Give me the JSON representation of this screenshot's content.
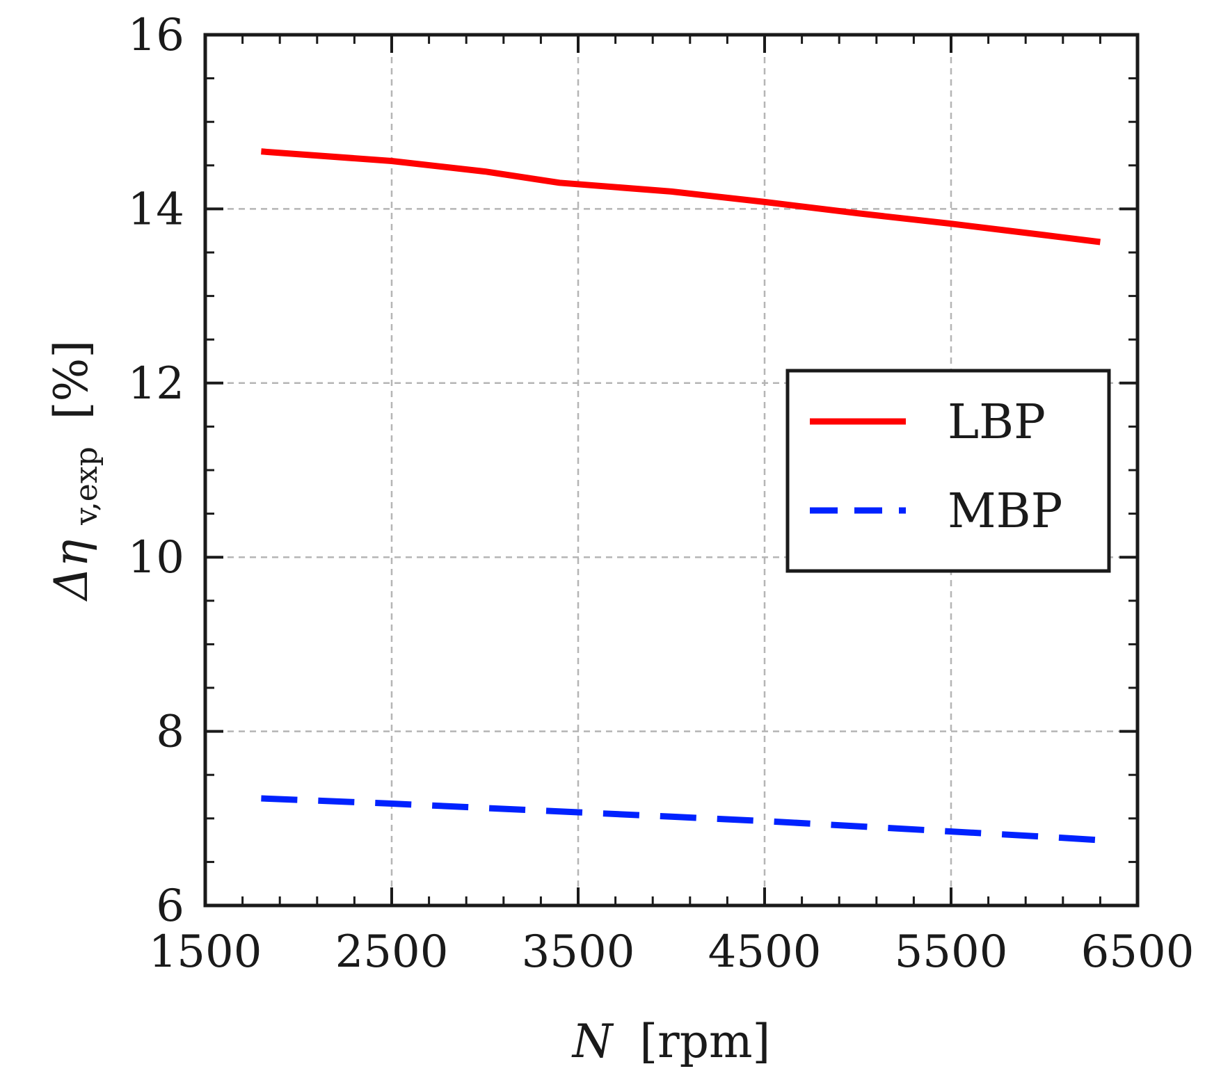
{
  "chart_data": {
    "type": "line",
    "xlabel_symbol": "N",
    "xlabel_unit": "[rpm]",
    "ylabel_prefix": "Δη",
    "ylabel_sub": "v,exp",
    "ylabel_unit": "[%]",
    "xlim": [
      1500,
      6500
    ],
    "ylim": [
      6,
      16
    ],
    "x_ticks": [
      1500,
      2500,
      3500,
      4500,
      5500,
      6500
    ],
    "y_ticks": [
      6,
      8,
      10,
      12,
      14,
      16
    ],
    "x_tick_labels": [
      "1500",
      "2500",
      "3500",
      "4500",
      "5500",
      "6500"
    ],
    "y_tick_labels": [
      "6",
      "8",
      "10",
      "12",
      "14",
      "16"
    ],
    "x_minor_step": 200,
    "y_minor_step": 0.5,
    "grid": true,
    "legend_position": "center-right",
    "series": [
      {
        "name": "LBP",
        "color": "#ff0000",
        "style": "solid",
        "x": [
          1800,
          2500,
          3000,
          3400,
          4000,
          4500,
          5000,
          5500,
          6000,
          6300
        ],
        "y": [
          14.66,
          14.55,
          14.43,
          14.3,
          14.2,
          14.08,
          13.95,
          13.83,
          13.7,
          13.62
        ]
      },
      {
        "name": "MBP",
        "color": "#0022ff",
        "style": "dashed",
        "x": [
          1800,
          2500,
          3000,
          3500,
          4000,
          4500,
          5000,
          5500,
          6000,
          6300
        ],
        "y": [
          7.23,
          7.17,
          7.12,
          7.07,
          7.02,
          6.97,
          6.91,
          6.85,
          6.79,
          6.75
        ]
      }
    ]
  }
}
